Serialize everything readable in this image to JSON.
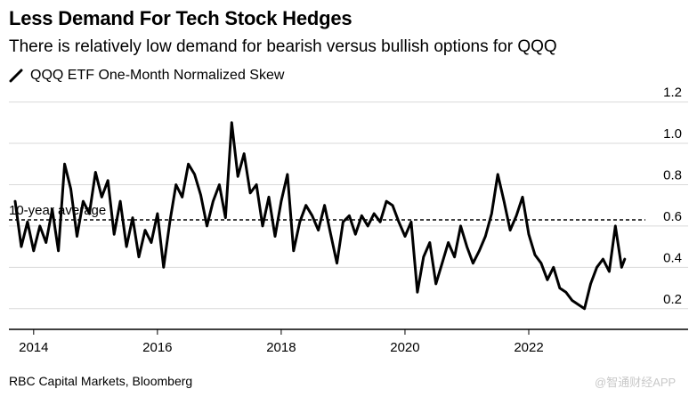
{
  "title": "Less Demand For Tech Stock Hedges",
  "subtitle": "There is relatively low demand for bearish versus bullish options for QQQ",
  "source": "RBC Capital Markets, Bloomberg",
  "watermark": "@智通财经APP",
  "colors": {
    "line": "#000000",
    "grid": "#d9d9d9",
    "axis": "#000000"
  },
  "chart_data": {
    "type": "line",
    "title": "Less Demand For Tech Stock Hedges",
    "xlabel": "",
    "ylabel": "",
    "xlim": [
      2013.6,
      2024.1
    ],
    "ylim": [
      0.1,
      1.25
    ],
    "x_ticks": [
      2014,
      2016,
      2018,
      2020,
      2022
    ],
    "x_tick_labels": [
      "2014",
      "2016",
      "2018",
      "2020",
      "2022"
    ],
    "y_ticks": [
      0.2,
      0.4,
      0.6,
      0.8,
      1.0,
      1.2
    ],
    "y_tick_labels": [
      "0.2",
      "0.4",
      "0.6",
      "0.8",
      "1.0",
      "1.2"
    ],
    "grid": true,
    "series": [
      {
        "name": "QQQ ETF One-Month Normalized Skew",
        "x": [
          2013.7,
          2013.8,
          2013.9,
          2014.0,
          2014.1,
          2014.2,
          2014.3,
          2014.4,
          2014.5,
          2014.6,
          2014.7,
          2014.8,
          2014.9,
          2015.0,
          2015.1,
          2015.2,
          2015.3,
          2015.4,
          2015.5,
          2015.6,
          2015.7,
          2015.8,
          2015.9,
          2016.0,
          2016.1,
          2016.2,
          2016.3,
          2016.4,
          2016.5,
          2016.6,
          2016.7,
          2016.8,
          2016.9,
          2017.0,
          2017.1,
          2017.2,
          2017.3,
          2017.4,
          2017.5,
          2017.6,
          2017.7,
          2017.8,
          2017.9,
          2018.0,
          2018.1,
          2018.2,
          2018.3,
          2018.4,
          2018.5,
          2018.6,
          2018.7,
          2018.8,
          2018.9,
          2019.0,
          2019.1,
          2019.2,
          2019.3,
          2019.4,
          2019.5,
          2019.6,
          2019.7,
          2019.8,
          2019.9,
          2020.0,
          2020.1,
          2020.2,
          2020.3,
          2020.4,
          2020.5,
          2020.6,
          2020.7,
          2020.8,
          2020.9,
          2021.0,
          2021.1,
          2021.2,
          2021.3,
          2021.4,
          2021.5,
          2021.6,
          2021.7,
          2021.8,
          2021.9,
          2022.0,
          2022.1,
          2022.2,
          2022.3,
          2022.4,
          2022.5,
          2022.6,
          2022.7,
          2022.8,
          2022.9,
          2023.0,
          2023.1,
          2023.2,
          2023.3,
          2023.4,
          2023.5,
          2023.55
        ],
        "values": [
          0.72,
          0.5,
          0.62,
          0.48,
          0.6,
          0.52,
          0.68,
          0.48,
          0.9,
          0.78,
          0.55,
          0.72,
          0.66,
          0.86,
          0.74,
          0.82,
          0.56,
          0.72,
          0.5,
          0.64,
          0.45,
          0.58,
          0.52,
          0.66,
          0.4,
          0.62,
          0.8,
          0.74,
          0.9,
          0.85,
          0.75,
          0.6,
          0.72,
          0.8,
          0.64,
          1.1,
          0.84,
          0.95,
          0.76,
          0.8,
          0.6,
          0.74,
          0.55,
          0.72,
          0.85,
          0.48,
          0.62,
          0.7,
          0.65,
          0.58,
          0.7,
          0.56,
          0.42,
          0.62,
          0.65,
          0.56,
          0.65,
          0.6,
          0.66,
          0.62,
          0.72,
          0.7,
          0.62,
          0.55,
          0.62,
          0.28,
          0.45,
          0.52,
          0.32,
          0.42,
          0.52,
          0.45,
          0.6,
          0.5,
          0.42,
          0.48,
          0.55,
          0.66,
          0.85,
          0.72,
          0.58,
          0.65,
          0.74,
          0.56,
          0.46,
          0.42,
          0.34,
          0.4,
          0.3,
          0.28,
          0.24,
          0.22,
          0.2,
          0.32,
          0.4,
          0.44,
          0.38,
          0.6,
          0.4,
          0.44
        ]
      }
    ],
    "reference_line": {
      "label": "10-year average",
      "value": 0.63,
      "style": "dashed"
    },
    "legend": {
      "position": "top-left",
      "entries": [
        "QQQ ETF One-Month Normalized Skew"
      ]
    }
  }
}
